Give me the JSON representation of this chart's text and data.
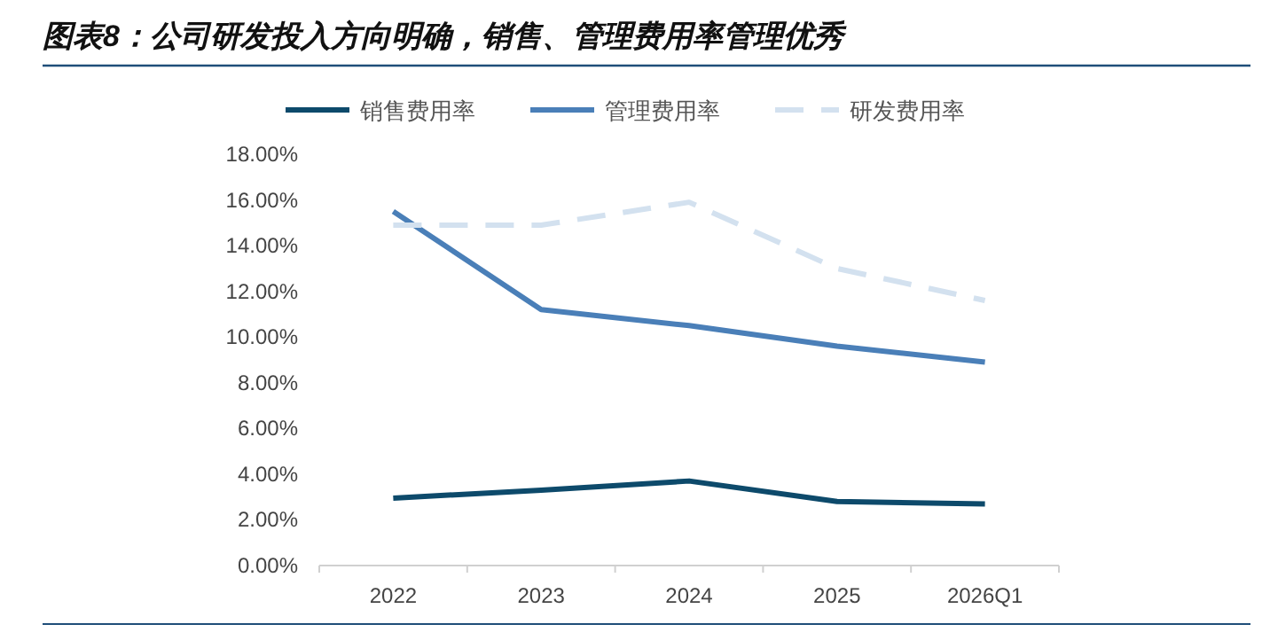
{
  "chart_data": {
    "type": "line",
    "title": "图表8：公司研发投入方向明确，销售、管理费用率管理优秀",
    "categories": [
      "2022",
      "2023",
      "2024",
      "2025",
      "2026Q1"
    ],
    "series": [
      {
        "name": "销售费用率",
        "color": "#0d4a6b",
        "values": [
          2.95,
          3.3,
          3.7,
          2.8,
          2.7
        ],
        "line_style": "solid"
      },
      {
        "name": "管理费用率",
        "color": "#4a7fb8",
        "values": [
          15.5,
          11.2,
          10.5,
          9.6,
          8.9
        ],
        "line_style": "solid"
      },
      {
        "name": "研发费用率",
        "color": "#d3e1ef",
        "values": [
          14.9,
          14.9,
          15.9,
          13.0,
          11.6
        ],
        "line_style": "dashed"
      }
    ],
    "ylim": [
      0,
      18
    ],
    "yticks": [
      {
        "value": 0,
        "label": "0.00%"
      },
      {
        "value": 2,
        "label": "2.00%"
      },
      {
        "value": 4,
        "label": "4.00%"
      },
      {
        "value": 6,
        "label": "6.00%"
      },
      {
        "value": 8,
        "label": "8.00%"
      },
      {
        "value": 10,
        "label": "10.00%"
      },
      {
        "value": 12,
        "label": "12.00%"
      },
      {
        "value": 14,
        "label": "14.00%"
      },
      {
        "value": 16,
        "label": "16.00%"
      },
      {
        "value": 18,
        "label": "18.00%"
      }
    ],
    "grid": false,
    "legend": "top"
  }
}
